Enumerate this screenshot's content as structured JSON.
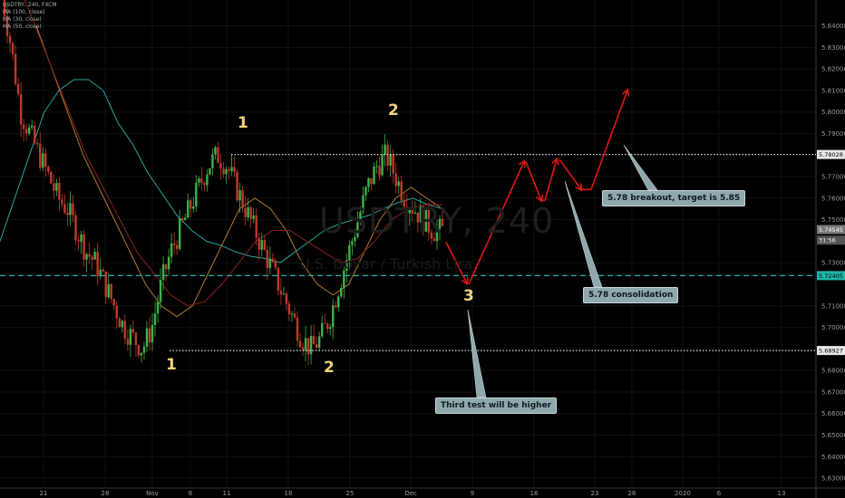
{
  "header": {
    "symbol_line": "USDTRY, 240, FXCM",
    "indicators": [
      "MA (100, close)",
      "MA (30, close)",
      "MA (50, close)"
    ]
  },
  "watermark": {
    "symbol": "USDTRY, 240",
    "description": "U.S. Dollar / Turkish Lira"
  },
  "annotations": {
    "wave_labels": [
      "1",
      "2",
      "1",
      "2",
      "3"
    ],
    "notes": [
      "5.78 breakout, target is 5.85",
      "5.78 consolidation",
      "Third test will be higher"
    ]
  },
  "price_labels": {
    "resistance": "5.78028",
    "last_price": "5.74545",
    "countdown": "31:56",
    "dashed_level": "5.72405",
    "support": "5.68927"
  },
  "colors": {
    "background": "#000000",
    "candle_up": "#3fb24a",
    "candle_down": "#c0392b",
    "ma100": "#2aa5a0",
    "ma30": "#b07a2a",
    "ma50": "#8b2020",
    "dashed_level": "#1fb5a8",
    "arrows": "#e01818",
    "label_text": "#f5d37a"
  },
  "chart_data": {
    "type": "candlestick",
    "y_axis": {
      "range": [
        5.625,
        5.852
      ],
      "ticks": [
        "5.84000",
        "5.83000",
        "5.82000",
        "5.81000",
        "5.80000",
        "5.79000",
        "5.77000",
        "5.76000",
        "5.75000",
        "5.73000",
        "5.71000",
        "5.70000",
        "5.68000",
        "5.67000",
        "5.66000",
        "5.65000",
        "5.64000",
        "5.63000"
      ]
    },
    "x_axis": {
      "ticks": [
        "21",
        "28",
        "Nov",
        "6",
        "11",
        "18",
        "25",
        "Dec",
        "9",
        "16",
        "23",
        "26",
        "2020",
        "6",
        "13"
      ]
    },
    "levels": [
      {
        "name": "resistance",
        "value": 5.78028,
        "style": "dotted"
      },
      {
        "name": "dashed_level",
        "value": 5.72405,
        "style": "dashed"
      },
      {
        "name": "support",
        "value": 5.68927,
        "style": "dotted"
      }
    ],
    "price_path": [
      5.855,
      5.83,
      5.8,
      5.79,
      5.78,
      5.77,
      5.76,
      5.755,
      5.745,
      5.735,
      5.73,
      5.72,
      5.71,
      5.7,
      5.695,
      5.69,
      5.7,
      5.72,
      5.735,
      5.745,
      5.755,
      5.765,
      5.775,
      5.78,
      5.775,
      5.765,
      5.755,
      5.745,
      5.735,
      5.725,
      5.715,
      5.705,
      5.695,
      5.69,
      5.695,
      5.705,
      5.72,
      5.735,
      5.75,
      5.765,
      5.775,
      5.78,
      5.77,
      5.76,
      5.755,
      5.75,
      5.745,
      5.745
    ],
    "ma100": [
      5.74,
      5.76,
      5.78,
      5.8,
      5.81,
      5.815,
      5.815,
      5.81,
      5.795,
      5.785,
      5.772,
      5.762,
      5.752,
      5.745,
      5.74,
      5.738,
      5.735,
      5.733,
      5.732,
      5.73,
      5.735,
      5.74,
      5.745,
      5.748,
      5.75,
      5.752,
      5.755,
      5.758,
      5.76,
      5.757,
      5.755
    ],
    "ma30": [
      5.84,
      5.82,
      5.8,
      5.78,
      5.765,
      5.75,
      5.735,
      5.72,
      5.71,
      5.705,
      5.71,
      5.725,
      5.74,
      5.755,
      5.76,
      5.755,
      5.745,
      5.73,
      5.72,
      5.715,
      5.72,
      5.735,
      5.75,
      5.76,
      5.765,
      5.76,
      5.755
    ],
    "ma50": [
      5.86,
      5.84,
      5.82,
      5.8,
      5.78,
      5.765,
      5.75,
      5.735,
      5.725,
      5.715,
      5.71,
      5.712,
      5.72,
      5.73,
      5.74,
      5.745,
      5.745,
      5.74,
      5.735,
      5.73,
      5.732,
      5.74,
      5.75,
      5.755,
      5.757,
      5.757
    ],
    "forecast_path": [
      [
        5.7395,
        5.7205
      ],
      [
        5.72,
        5.777
      ],
      [
        5.777,
        5.759
      ],
      [
        5.759,
        5.778
      ],
      [
        5.778,
        5.764
      ],
      [
        5.764,
        5.81
      ]
    ]
  }
}
